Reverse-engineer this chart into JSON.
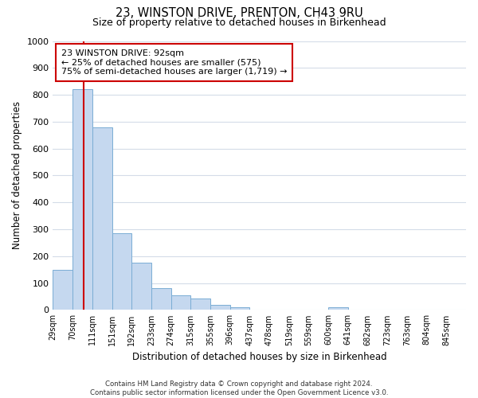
{
  "title": "23, WINSTON DRIVE, PRENTON, CH43 9RU",
  "subtitle": "Size of property relative to detached houses in Birkenhead",
  "xlabel": "Distribution of detached houses by size in Birkenhead",
  "ylabel": "Number of detached properties",
  "bin_labels": [
    "29sqm",
    "70sqm",
    "111sqm",
    "151sqm",
    "192sqm",
    "233sqm",
    "274sqm",
    "315sqm",
    "355sqm",
    "396sqm",
    "437sqm",
    "478sqm",
    "519sqm",
    "559sqm",
    "600sqm",
    "641sqm",
    "682sqm",
    "723sqm",
    "763sqm",
    "804sqm",
    "845sqm"
  ],
  "bar_values": [
    150,
    820,
    680,
    285,
    175,
    80,
    55,
    42,
    20,
    10,
    0,
    0,
    0,
    0,
    10,
    0,
    0,
    0,
    0,
    0,
    0
  ],
  "bar_color": "#c5d8ef",
  "bar_edgecolor": "#7aadd4",
  "vline_color": "#cc0000",
  "vline_x": 1.57,
  "ylim": [
    0,
    1000
  ],
  "yticks": [
    0,
    100,
    200,
    300,
    400,
    500,
    600,
    700,
    800,
    900,
    1000
  ],
  "annotation_line1": "23 WINSTON DRIVE: 92sqm",
  "annotation_line2": "← 25% of detached houses are smaller (575)",
  "annotation_line3": "75% of semi-detached houses are larger (1,719) →",
  "annotation_box_color": "#ffffff",
  "annotation_box_edgecolor": "#cc0000",
  "footer_text": "Contains HM Land Registry data © Crown copyright and database right 2024.\nContains public sector information licensed under the Open Government Licence v3.0.",
  "background_color": "#ffffff",
  "grid_color": "#d4dce8"
}
